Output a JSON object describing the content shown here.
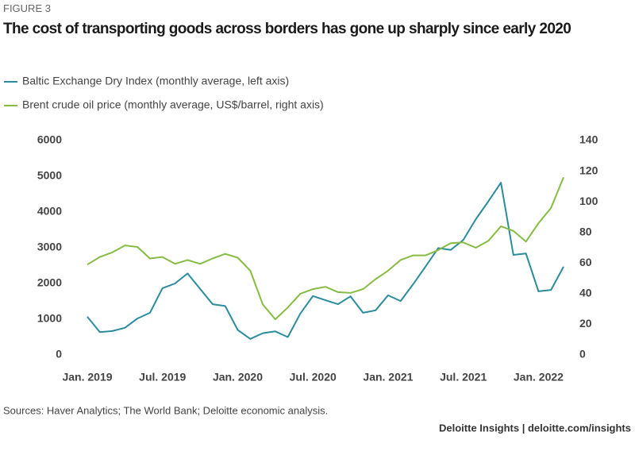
{
  "figure_label": "FIGURE 3",
  "chart_data": {
    "type": "line",
    "title": "The cost of transporting goods across borders has gone up sharply since early 2020",
    "categories": [
      "Jan. 2019",
      null,
      null,
      null,
      null,
      null,
      "Jul. 2019",
      null,
      null,
      null,
      null,
      null,
      "Jan. 2020",
      null,
      null,
      null,
      null,
      null,
      "Jul. 2020",
      null,
      null,
      null,
      null,
      null,
      "Jan. 2021",
      null,
      null,
      null,
      null,
      null,
      "Jul. 2021",
      null,
      null,
      null,
      null,
      null,
      "Jan. 2022",
      null,
      null
    ],
    "series": [
      {
        "name": "Baltic Exchange Dry Index (monthly average, left axis)",
        "color": "#2a8c9e",
        "axis": "y",
        "values": [
          1070,
          640,
          670,
          760,
          1020,
          1180,
          1870,
          2000,
          2280,
          1850,
          1420,
          1370,
          700,
          450,
          610,
          660,
          500,
          1160,
          1650,
          1530,
          1420,
          1640,
          1180,
          1250,
          1670,
          1510,
          1980,
          2480,
          2990,
          2940,
          3220,
          3800,
          4300,
          4820,
          2800,
          2840,
          1780,
          1820,
          2470
        ]
      },
      {
        "name": "Brent crude oil price (monthly average, US$/barrel, right axis)",
        "color": "#86bc42",
        "axis": "y2",
        "values": [
          59,
          64,
          67,
          71.5,
          70.5,
          63,
          64,
          59.5,
          62,
          59.5,
          63,
          66,
          63.5,
          55,
          33,
          23.3,
          31,
          40,
          43,
          44.5,
          41,
          40.5,
          43,
          49.5,
          55,
          62,
          65,
          65,
          68.5,
          73,
          73.5,
          70,
          74.5,
          84,
          81,
          74,
          86,
          96,
          116
        ]
      }
    ],
    "ylim": [
      0,
      6000
    ],
    "yticks": [
      0,
      1000,
      2000,
      3000,
      4000,
      5000,
      6000
    ],
    "y2lim": [
      0,
      140
    ],
    "y2ticks": [
      0,
      20,
      40,
      60,
      80,
      100,
      120,
      140
    ],
    "grid": false,
    "source": "Sources: Haver Analytics; The World Bank; Deloitte economic analysis.",
    "credit": "Deloitte Insights | deloitte.com/insights"
  }
}
